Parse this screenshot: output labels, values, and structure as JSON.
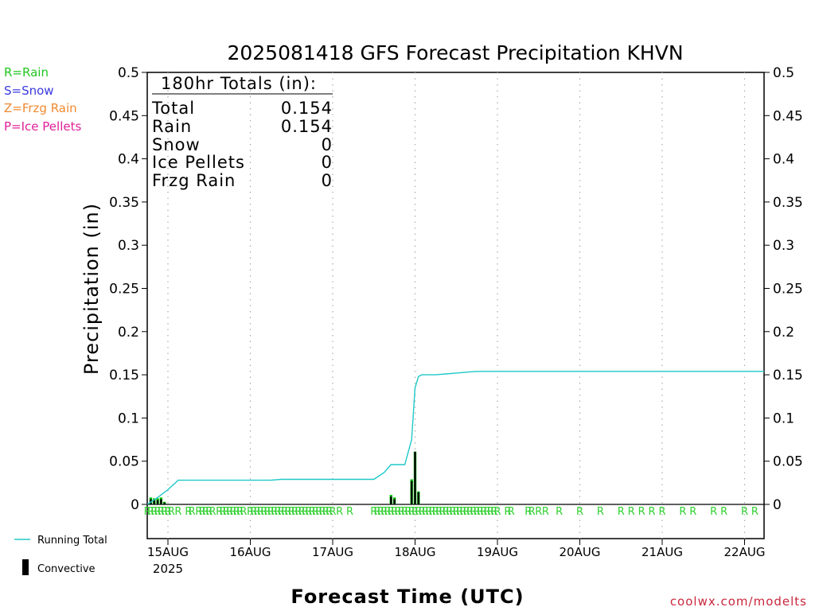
{
  "chart_data": {
    "type": "line",
    "title": "2025081418 GFS Forecast Precipitation KHVN",
    "ylabel": "Precipitation (in)",
    "xlabel": "Forecast Time (UTC)",
    "ylim": [
      0,
      0.5
    ],
    "yticks": [
      "0.5",
      "0.45",
      "0.4",
      "0.35",
      "0.3",
      "0.25",
      "0.2",
      "0.15",
      "0.1",
      "0.05",
      "0"
    ],
    "ytick_values": [
      0.5,
      0.45,
      0.4,
      0.35,
      0.3,
      0.25,
      0.2,
      0.15,
      0.1,
      0.05,
      0
    ],
    "xlim_hours": [
      -3,
      183
    ],
    "xtick_labels": [
      "15AUG",
      "16AUG",
      "17AUG",
      "18AUG",
      "19AUG",
      "20AUG",
      "21AUG",
      "22AUG"
    ],
    "xtick_hours": [
      6,
      30,
      54,
      78,
      102,
      126,
      150,
      174
    ],
    "xtick_year": "2025",
    "grid": "vertical dotted at day boundaries",
    "series": [
      {
        "name": "Running Total",
        "color": "#20c8c8",
        "x": [
          0,
          3,
          6,
          9,
          12,
          36,
          39,
          66,
          69,
          71,
          72,
          75,
          77,
          78,
          79,
          80,
          81,
          84,
          87,
          90,
          93,
          96,
          183
        ],
        "y": [
          0,
          0.008,
          0.017,
          0.028,
          0.028,
          0.028,
          0.029,
          0.029,
          0.037,
          0.046,
          0.046,
          0.046,
          0.075,
          0.135,
          0.148,
          0.15,
          0.15,
          0.15,
          0.151,
          0.152,
          0.153,
          0.154,
          0.154
        ]
      },
      {
        "name": "Convective",
        "type": "bar",
        "color": "#000000",
        "x": [
          1,
          2,
          3,
          4,
          5,
          71,
          72,
          77,
          78,
          79
        ],
        "y": [
          0.006,
          0.005,
          0.005,
          0.006,
          0.002,
          0.009,
          0.006,
          0.027,
          0.061,
          0.014
        ]
      },
      {
        "name": "Total",
        "type": "bar",
        "color": "#00c000",
        "x": [
          1,
          2,
          3,
          4,
          5,
          71,
          72,
          77,
          78,
          79
        ],
        "y": [
          0.008,
          0.007,
          0.007,
          0.008,
          0.003,
          0.011,
          0.008,
          0.029,
          0.061,
          0.015
        ]
      }
    ],
    "ptype_marks": {
      "label": "R",
      "color": "#30d030",
      "hours": [
        0,
        1,
        2,
        3,
        4,
        5,
        6,
        7,
        9,
        12,
        13,
        15,
        16,
        17,
        18,
        19,
        21,
        22,
        23,
        24,
        25,
        26,
        27,
        28,
        30,
        31,
        32,
        33,
        34,
        35,
        36,
        37,
        38,
        39,
        40,
        41,
        42,
        43,
        44,
        45,
        46,
        47,
        48,
        49,
        50,
        51,
        52,
        53,
        54,
        56,
        59,
        66,
        67,
        68,
        69,
        70,
        71,
        72,
        73,
        74,
        75,
        76,
        77,
        78,
        79,
        80,
        81,
        82,
        83,
        84,
        85,
        86,
        87,
        88,
        89,
        90,
        91,
        92,
        93,
        94,
        95,
        96,
        97,
        98,
        99,
        100,
        101,
        102,
        105,
        106,
        111,
        112,
        114,
        116,
        120,
        126,
        132,
        138,
        141,
        144,
        147,
        150,
        156,
        159,
        165,
        168,
        174,
        177
      ]
    },
    "totals_box": {
      "header": "180hr Totals (in):",
      "rows": [
        {
          "label": "Total",
          "value": "0.154"
        },
        {
          "label": "Rain",
          "value": "0.154"
        },
        {
          "label": "Snow",
          "value": "0"
        },
        {
          "label": "Ice Pellets",
          "value": "0"
        },
        {
          "label": "Frzg Rain",
          "value": "0"
        }
      ]
    }
  },
  "ptype_legend": [
    {
      "text": "R=Rain",
      "color": "#22c522"
    },
    {
      "text": "S=Snow",
      "color": "#3a3ae0"
    },
    {
      "text": "Z=Frzg Rain",
      "color": "#f08a30"
    },
    {
      "text": "P=Ice Pellets",
      "color": "#e0209a"
    }
  ],
  "series_legend": {
    "running_total": "Running Total",
    "convective": "Convective"
  },
  "credit": "coolwx.com/modelts",
  "credit_color": "#c8283c"
}
